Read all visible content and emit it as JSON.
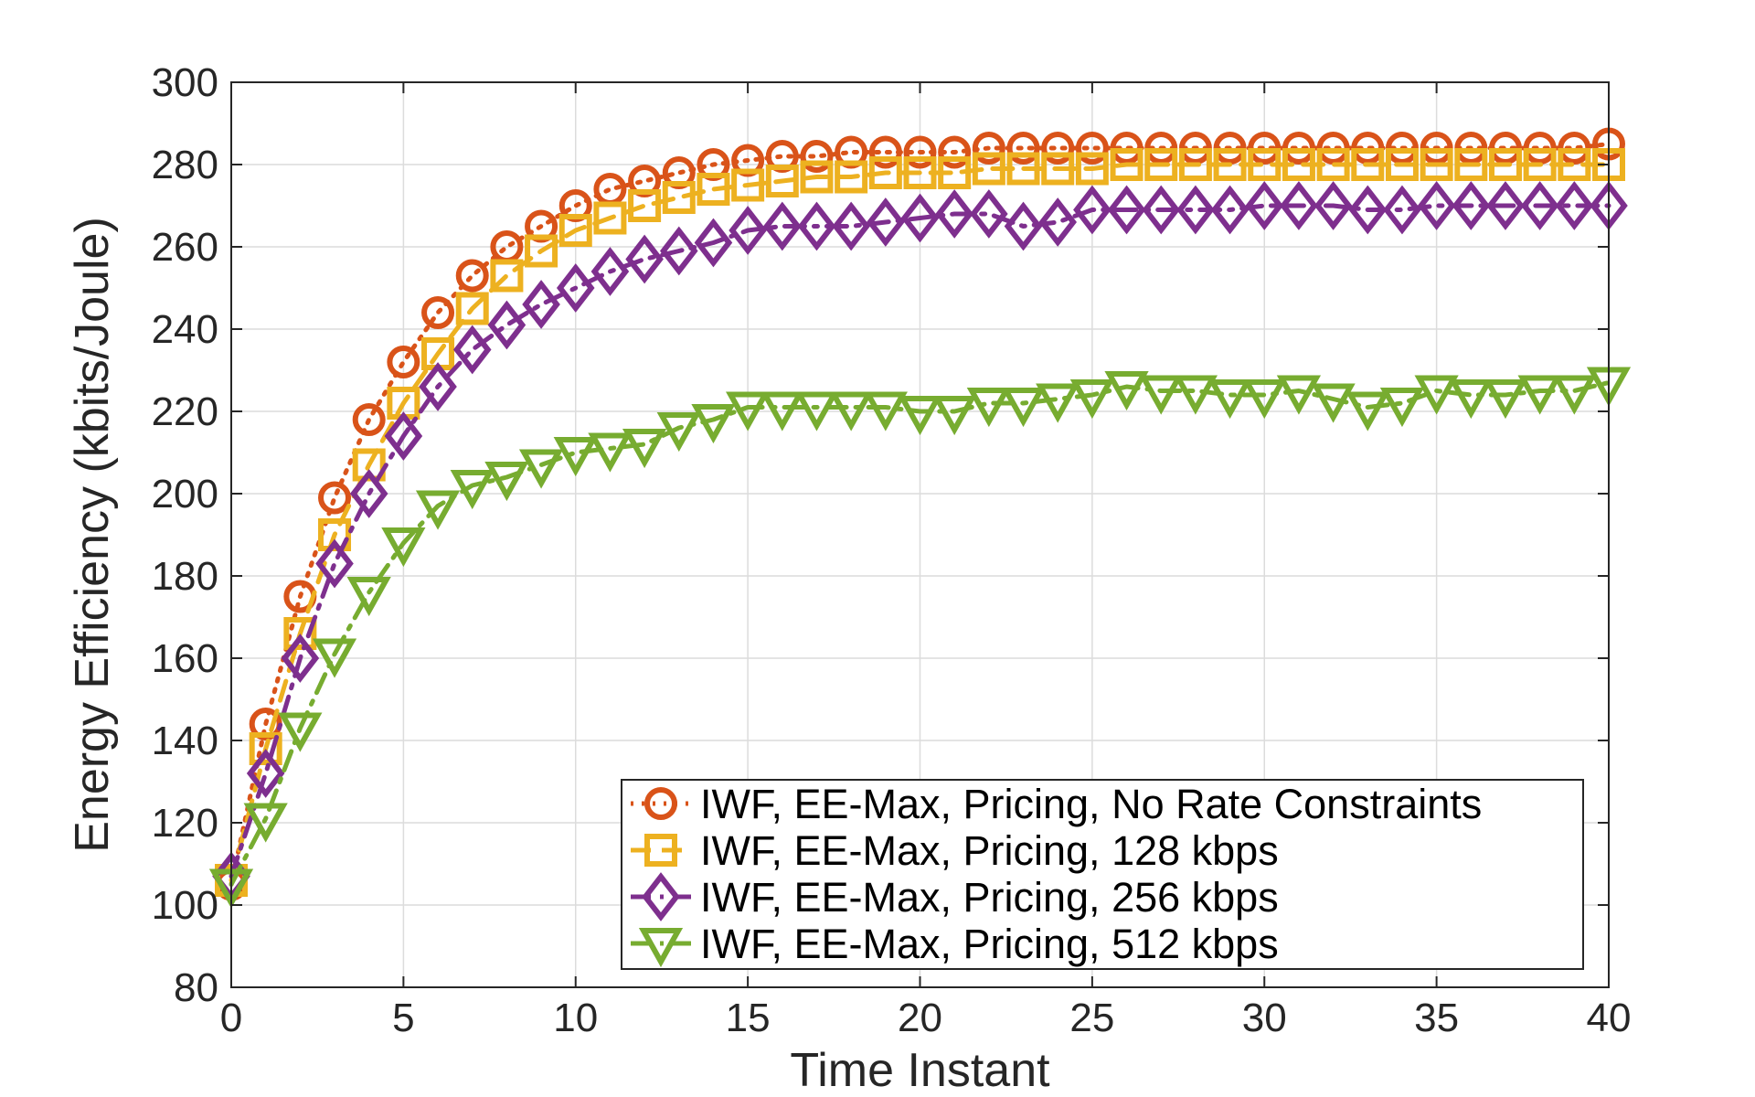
{
  "chart_data": {
    "type": "line",
    "title": "",
    "xlabel": "Time Instant",
    "ylabel": "Energy Efficiency (kbits/Joule)",
    "xlim": [
      0,
      40
    ],
    "ylim": [
      80,
      300
    ],
    "xticks": [
      0,
      5,
      10,
      15,
      20,
      25,
      30,
      35,
      40
    ],
    "yticks": [
      80,
      100,
      120,
      140,
      160,
      180,
      200,
      220,
      240,
      260,
      280,
      300
    ],
    "grid": true,
    "legend_position": "bottom-right",
    "x": [
      0,
      1,
      2,
      3,
      4,
      5,
      6,
      7,
      8,
      9,
      10,
      11,
      12,
      13,
      14,
      15,
      16,
      17,
      18,
      19,
      20,
      21,
      22,
      23,
      24,
      25,
      26,
      27,
      28,
      29,
      30,
      31,
      32,
      33,
      34,
      35,
      36,
      37,
      38,
      39,
      40
    ],
    "series": [
      {
        "name": "IWF, EE-Max, Pricing, No Rate Constraints",
        "color": "#D95319",
        "marker": "circle",
        "linestyle": "dotted",
        "values": [
          105,
          144,
          175,
          199,
          218,
          232,
          244,
          253,
          260,
          265,
          270,
          274,
          276,
          278,
          280,
          281,
          282,
          282,
          283,
          283,
          283,
          283,
          284,
          284,
          284,
          284,
          284,
          284,
          284,
          284,
          284,
          284,
          284,
          284,
          284,
          284,
          284,
          284,
          284,
          284,
          285
        ]
      },
      {
        "name": "IWF, EE-Max, Pricing, 128 kbps",
        "color": "#EDB120",
        "marker": "square",
        "linestyle": "dashed",
        "values": [
          106,
          138,
          166,
          190,
          207,
          222,
          234,
          245,
          253,
          259,
          264,
          267,
          270,
          272,
          274,
          275,
          276,
          277,
          277,
          278,
          278,
          278,
          279,
          279,
          279,
          279,
          280,
          280,
          280,
          280,
          280,
          280,
          280,
          280,
          280,
          280,
          280,
          280,
          280,
          280,
          280
        ]
      },
      {
        "name": "IWF, EE-Max, Pricing, 256 kbps",
        "color": "#7E2F8E",
        "marker": "diamond",
        "linestyle": "dashdot",
        "values": [
          107,
          132,
          160,
          183,
          200,
          214,
          226,
          235,
          241,
          246,
          250,
          254,
          257,
          259,
          261,
          264,
          265,
          265,
          265,
          266,
          267,
          268,
          268,
          265,
          266,
          269,
          269,
          269,
          269,
          269,
          270,
          270,
          270,
          269,
          269,
          270,
          270,
          270,
          270,
          270,
          270
        ]
      },
      {
        "name": "IWF, EE-Max, Pricing, 512 kbps",
        "color": "#77AC30",
        "marker": "triangle-down",
        "linestyle": "dashdot",
        "values": [
          105,
          121,
          143,
          161,
          176,
          188,
          197,
          202,
          204,
          207,
          210,
          211,
          212,
          216,
          218,
          221,
          221,
          221,
          221,
          221,
          220,
          220,
          222,
          222,
          223,
          224,
          226,
          225,
          225,
          224,
          224,
          225,
          223,
          221,
          222,
          225,
          224,
          224,
          225,
          225,
          227
        ]
      }
    ]
  }
}
